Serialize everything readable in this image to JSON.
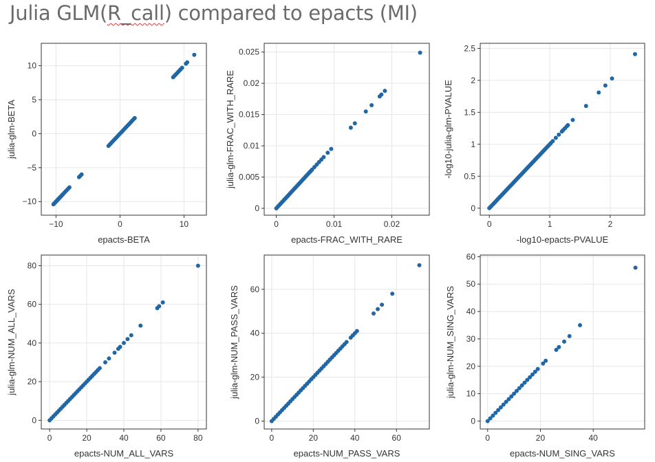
{
  "title": {
    "before": "Julia GLM(",
    "underlined": "R_call",
    "after": ") compared to epacts (MI)"
  },
  "colors": {
    "point": "#2166a5",
    "grid": "#e6e6e6",
    "frame": "#333333"
  },
  "chart_data": [
    {
      "type": "scatter",
      "xlabel": "epacts-BETA",
      "ylabel": "julia-glm-BETA",
      "xlim": [
        -12.3,
        13.5
      ],
      "ylim": [
        -12.0,
        13.3
      ],
      "xticks": [
        -10,
        0,
        10
      ],
      "xtick_labels": [
        "−10",
        "0",
        "10"
      ],
      "yticks": [
        -10,
        -5,
        0,
        5,
        10
      ],
      "ytick_labels": [
        "−10",
        "−5",
        "0",
        "5",
        "10"
      ],
      "grid": true,
      "x": [
        -10.4,
        -10.3,
        -10.2,
        -10.1,
        -10.0,
        -9.9,
        -9.8,
        -9.7,
        -9.6,
        -9.5,
        -9.4,
        -9.3,
        -9.2,
        -9.1,
        -9.0,
        -8.9,
        -8.7,
        -8.5,
        -8.3,
        -8.1,
        -7.9,
        -6.4,
        -6.2,
        -6.0,
        -1.8,
        -1.6,
        -1.4,
        -1.2,
        -1.0,
        -0.8,
        -0.6,
        -0.4,
        -0.2,
        0.0,
        0.2,
        0.4,
        0.6,
        0.8,
        1.0,
        1.2,
        1.4,
        1.6,
        1.8,
        2.0,
        2.2,
        2.3,
        8.3,
        8.5,
        8.7,
        8.9,
        9.1,
        9.3,
        9.5,
        9.7,
        10.3,
        10.5,
        11.6
      ],
      "y": [
        -10.4,
        -10.3,
        -10.2,
        -10.1,
        -10.0,
        -9.9,
        -9.8,
        -9.7,
        -9.6,
        -9.5,
        -9.4,
        -9.3,
        -9.2,
        -9.1,
        -9.0,
        -8.9,
        -8.7,
        -8.5,
        -8.3,
        -8.1,
        -7.9,
        -6.4,
        -6.2,
        -6.0,
        -1.8,
        -1.6,
        -1.4,
        -1.2,
        -1.0,
        -0.8,
        -0.6,
        -0.4,
        -0.2,
        0.0,
        0.2,
        0.4,
        0.6,
        0.8,
        1.0,
        1.2,
        1.4,
        1.6,
        1.8,
        2.0,
        2.2,
        2.3,
        8.3,
        8.5,
        8.7,
        8.9,
        9.1,
        9.3,
        9.5,
        9.7,
        10.3,
        10.5,
        11.6
      ]
    },
    {
      "type": "scatter",
      "xlabel": "epacts-FRAC_WITH_RARE",
      "ylabel": "julia-glm-FRAC_WITH_RARE",
      "xlim": [
        -0.0021,
        0.0265
      ],
      "ylim": [
        -0.0011,
        0.0264
      ],
      "xticks": [
        0,
        0.01,
        0.02
      ],
      "xtick_labels": [
        "0",
        "0.01",
        "0.02"
      ],
      "yticks": [
        0,
        0.005,
        0.01,
        0.015,
        0.02,
        0.025
      ],
      "ytick_labels": [
        "0",
        "0.005",
        "0.01",
        "0.015",
        "0.02",
        "0.025"
      ],
      "grid": true,
      "x": [
        0,
        0.0002,
        0.0004,
        0.0006,
        0.0008,
        0.001,
        0.0012,
        0.0014,
        0.0016,
        0.0018,
        0.002,
        0.0022,
        0.0024,
        0.0026,
        0.0028,
        0.003,
        0.0032,
        0.0034,
        0.0036,
        0.0038,
        0.004,
        0.0042,
        0.0044,
        0.0046,
        0.0048,
        0.005,
        0.0052,
        0.0054,
        0.0056,
        0.0058,
        0.006,
        0.0062,
        0.0066,
        0.007,
        0.0074,
        0.0078,
        0.0082,
        0.0089,
        0.0095,
        0.0129,
        0.0136,
        0.0155,
        0.0165,
        0.0179,
        0.0182,
        0.0188,
        0.0249
      ],
      "y": [
        0,
        0.0002,
        0.0004,
        0.0006,
        0.0008,
        0.001,
        0.0012,
        0.0014,
        0.0016,
        0.0018,
        0.002,
        0.0022,
        0.0024,
        0.0026,
        0.0028,
        0.003,
        0.0032,
        0.0034,
        0.0036,
        0.0038,
        0.004,
        0.0042,
        0.0044,
        0.0046,
        0.0048,
        0.005,
        0.0052,
        0.0054,
        0.0056,
        0.0058,
        0.006,
        0.0062,
        0.0066,
        0.007,
        0.0074,
        0.0078,
        0.0082,
        0.0089,
        0.0095,
        0.0129,
        0.0136,
        0.0155,
        0.0165,
        0.0179,
        0.0182,
        0.0188,
        0.0249
      ]
    },
    {
      "type": "scatter",
      "xlabel": "-log10-epacts-PVALUE",
      "ylabel": "-log10-julia-glm-PVALUE",
      "xlim": [
        -0.15,
        2.57
      ],
      "ylim": [
        -0.11,
        2.58
      ],
      "xticks": [
        0,
        1,
        2
      ],
      "xtick_labels": [
        "0",
        "1",
        "2"
      ],
      "yticks": [
        0,
        0.5,
        1,
        1.5,
        2,
        2.5
      ],
      "ytick_labels": [
        "0",
        "0.5",
        "1",
        "1.5",
        "2",
        "2.5"
      ],
      "grid": true,
      "x": [
        0,
        0.02,
        0.04,
        0.06,
        0.08,
        0.1,
        0.12,
        0.14,
        0.16,
        0.18,
        0.2,
        0.22,
        0.24,
        0.26,
        0.28,
        0.3,
        0.32,
        0.34,
        0.36,
        0.38,
        0.4,
        0.42,
        0.44,
        0.46,
        0.48,
        0.5,
        0.52,
        0.54,
        0.56,
        0.58,
        0.6,
        0.62,
        0.64,
        0.66,
        0.68,
        0.7,
        0.72,
        0.74,
        0.76,
        0.78,
        0.8,
        0.82,
        0.84,
        0.86,
        0.88,
        0.9,
        0.92,
        0.94,
        0.96,
        0.98,
        1.0,
        1.02,
        1.05,
        1.1,
        1.15,
        1.2,
        1.22,
        1.25,
        1.28,
        1.3,
        1.38,
        1.6,
        1.81,
        1.92,
        2.03,
        2.41
      ],
      "y": [
        0,
        0.02,
        0.04,
        0.06,
        0.08,
        0.1,
        0.12,
        0.14,
        0.16,
        0.18,
        0.2,
        0.22,
        0.24,
        0.26,
        0.28,
        0.3,
        0.32,
        0.34,
        0.36,
        0.38,
        0.4,
        0.42,
        0.44,
        0.46,
        0.48,
        0.5,
        0.52,
        0.54,
        0.56,
        0.58,
        0.6,
        0.62,
        0.64,
        0.66,
        0.68,
        0.7,
        0.72,
        0.74,
        0.76,
        0.78,
        0.8,
        0.82,
        0.84,
        0.86,
        0.88,
        0.9,
        0.92,
        0.94,
        0.96,
        0.98,
        1.0,
        1.02,
        1.05,
        1.1,
        1.15,
        1.2,
        1.22,
        1.25,
        1.28,
        1.3,
        1.38,
        1.6,
        1.81,
        1.92,
        2.03,
        2.41
      ]
    },
    {
      "type": "scatter",
      "xlabel": "epacts-NUM_ALL_VARS",
      "ylabel": "julia-glm-NUM_ALL_VARS",
      "xlim": [
        -4.5,
        84.5
      ],
      "ylim": [
        -4.5,
        85.5
      ],
      "xticks": [
        0,
        20,
        40,
        60,
        80
      ],
      "xtick_labels": [
        "0",
        "20",
        "40",
        "60",
        "80"
      ],
      "yticks": [
        0,
        20,
        40,
        60,
        80
      ],
      "ytick_labels": [
        "0",
        "20",
        "40",
        "60",
        "80"
      ],
      "grid": true,
      "x": [
        0,
        1,
        2,
        3,
        4,
        5,
        6,
        7,
        8,
        9,
        10,
        11,
        12,
        13,
        14,
        15,
        16,
        17,
        18,
        19,
        20,
        21,
        22,
        23,
        24,
        25,
        26,
        27,
        30,
        32,
        35,
        37,
        38,
        40,
        42,
        44,
        49,
        58,
        59,
        61,
        80
      ],
      "y": [
        0,
        1,
        2,
        3,
        4,
        5,
        6,
        7,
        8,
        9,
        10,
        11,
        12,
        13,
        14,
        15,
        16,
        17,
        18,
        19,
        20,
        21,
        22,
        23,
        24,
        25,
        26,
        27,
        30,
        32,
        35,
        37,
        38,
        40,
        42,
        44,
        49,
        58,
        59,
        61,
        80
      ]
    },
    {
      "type": "scatter",
      "xlabel": "epacts-NUM_PASS_VARS",
      "ylabel": "julia-glm-NUM_PASS_VARS",
      "xlim": [
        -3.6,
        75.8
      ],
      "ylim": [
        -3.6,
        75.6
      ],
      "xticks": [
        0,
        20,
        40,
        60
      ],
      "xtick_labels": [
        "0",
        "20",
        "40",
        "60"
      ],
      "yticks": [
        0,
        20,
        40,
        60
      ],
      "ytick_labels": [
        "0",
        "20",
        "40",
        "60"
      ],
      "grid": true,
      "x": [
        0,
        1,
        2,
        3,
        4,
        5,
        6,
        7,
        8,
        9,
        10,
        11,
        12,
        13,
        14,
        15,
        16,
        17,
        18,
        19,
        20,
        21,
        22,
        23,
        24,
        25,
        26,
        27,
        28,
        29,
        30,
        31,
        32,
        33,
        34,
        35,
        36,
        38,
        39,
        40,
        41,
        49,
        51,
        53,
        58,
        71
      ],
      "y": [
        0,
        1,
        2,
        3,
        4,
        5,
        6,
        7,
        8,
        9,
        10,
        11,
        12,
        13,
        14,
        15,
        16,
        17,
        18,
        19,
        20,
        21,
        22,
        23,
        24,
        25,
        26,
        27,
        28,
        29,
        30,
        31,
        32,
        33,
        34,
        35,
        36,
        38,
        39,
        40,
        41,
        49,
        51,
        53,
        58,
        71
      ]
    },
    {
      "type": "scatter",
      "xlabel": "epacts-NUM_SING_VARS",
      "ylabel": "julia-glm-NUM_SING_VARS",
      "xlim": [
        -2.8,
        59.5
      ],
      "ylim": [
        -2.9,
        60.6
      ],
      "xticks": [
        0,
        20,
        40
      ],
      "xtick_labels": [
        "0",
        "20",
        "40"
      ],
      "yticks": [
        0,
        10,
        20,
        30,
        40,
        50,
        60
      ],
      "ytick_labels": [
        "0",
        "10",
        "20",
        "30",
        "40",
        "50",
        "60"
      ],
      "grid": true,
      "x": [
        0,
        1,
        2,
        3,
        4,
        5,
        6,
        7,
        8,
        9,
        10,
        11,
        12,
        13,
        14,
        15,
        16,
        17,
        18,
        19,
        21,
        22,
        26,
        27,
        29,
        31,
        35,
        56
      ],
      "y": [
        0,
        1,
        2,
        3,
        4,
        5,
        6,
        7,
        8,
        9,
        10,
        11,
        12,
        13,
        14,
        15,
        16,
        17,
        18,
        19,
        21,
        22,
        26,
        27,
        29,
        31,
        35,
        56
      ]
    }
  ]
}
